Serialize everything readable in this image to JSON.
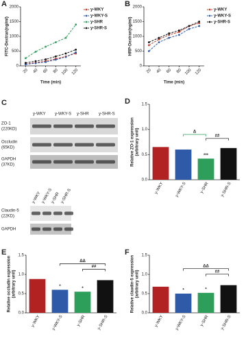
{
  "chart_data": [
    {
      "type": "line",
      "label": "A",
      "x_label": "Time (min)",
      "y_label": "FITC-Dextran(ng/ml)",
      "x": [
        20,
        40,
        60,
        80,
        100,
        120
      ],
      "xlim": [
        10,
        130
      ],
      "xticks": [
        20,
        40,
        60,
        80,
        100,
        120
      ],
      "ylim": [
        0,
        2000
      ],
      "yticks": [
        0,
        500,
        1000,
        1500,
        2000
      ],
      "series": [
        {
          "name": "y-WKY",
          "color": "#c0392b",
          "values": [
            60,
            110,
            160,
            240,
            320,
            420
          ]
        },
        {
          "name": "y-WKY-S",
          "color": "#2f5aa8",
          "values": [
            50,
            90,
            130,
            210,
            300,
            460
          ]
        },
        {
          "name": "y-SHR",
          "color": "#2e9e5b",
          "values": [
            260,
            480,
            650,
            800,
            950,
            1400
          ]
        },
        {
          "name": "y-SHR-S",
          "color": "#111111",
          "values": [
            100,
            160,
            220,
            320,
            420,
            550
          ]
        }
      ]
    },
    {
      "type": "line",
      "label": "B",
      "x_label": "Time (min)",
      "y_label": "HRP-Dextran(ng/ml)",
      "x": [
        20,
        40,
        60,
        80,
        100,
        120
      ],
      "xlim": [
        10,
        130
      ],
      "xticks": [
        20,
        40,
        60,
        80,
        100,
        120
      ],
      "ylim": [
        0,
        2000
      ],
      "yticks": [
        0,
        500,
        1000,
        1500,
        2000
      ],
      "series": [
        {
          "name": "y-WKY",
          "color": "#c0392b",
          "values": [
            700,
            900,
            1050,
            1150,
            1350,
            1450
          ]
        },
        {
          "name": "y-WKY-S",
          "color": "#2f5aa8",
          "values": [
            500,
            800,
            950,
            1050,
            1250,
            1350
          ]
        },
        {
          "name": "y-SHR-S",
          "color": "#111111",
          "values": [
            800,
            950,
            1100,
            1200,
            1350,
            1500
          ]
        }
      ]
    },
    {
      "type": "bar",
      "label": "D",
      "y_label": "Relative ZO-1 expression",
      "y_label2": "(arbitrary unit)",
      "categories": [
        "y-WKY",
        "y-WKY-S",
        "y-SHR",
        "y-SHR-S"
      ],
      "colors": [
        "#b22222",
        "#2f5aa8",
        "#2e9e5b",
        "#111111"
      ],
      "values": [
        0.65,
        0.6,
        0.42,
        0.63
      ],
      "ylim": [
        0,
        1.5
      ],
      "yticks": [
        {
          "value": 0,
          "label": "0.0"
        },
        0.5,
        {
          "value": 1,
          "label": "1.0"
        },
        1.5
      ],
      "annotations": [
        {
          "text": "Δ",
          "color": "#2e9e5b"
        },
        {
          "text": "##",
          "color": "#111111"
        },
        {
          "text": "***",
          "color": "#2e9e5b"
        }
      ]
    },
    {
      "type": "bar",
      "label": "E",
      "y_label": "Relative occludin expression",
      "y_label2": "(arbitrary unit)",
      "categories": [
        "y-WKY",
        "y-WKY-S",
        "y-SHR",
        "y-SHR-S"
      ],
      "colors": [
        "#b22222",
        "#2f5aa8",
        "#2e9e5b",
        "#111111"
      ],
      "values": [
        0.88,
        0.6,
        0.55,
        0.85
      ],
      "ylim": [
        0,
        1.5
      ],
      "yticks": [
        {
          "value": 0,
          "label": "0.0"
        },
        0.5,
        {
          "value": 1,
          "label": "1.0"
        },
        1.5
      ],
      "annotations": [
        {
          "text": "ΔΔ",
          "color": "#111111"
        },
        {
          "text": "##",
          "color": "#111111"
        },
        {
          "text": "*",
          "color": "#2f5aa8"
        },
        {
          "text": "*",
          "color": "#2e9e5b"
        }
      ]
    },
    {
      "type": "bar",
      "label": "F",
      "y_label": "Relative claudin-5 expression",
      "y_label2": "(arbitrary unit)",
      "categories": [
        "y-WKY",
        "y-WKY-S",
        "y-SHR",
        "y-SHR-S"
      ],
      "colors": [
        "#b22222",
        "#2f5aa8",
        "#2e9e5b",
        "#111111"
      ],
      "values": [
        0.68,
        0.5,
        0.52,
        0.72
      ],
      "ylim": [
        0,
        1.5
      ],
      "yticks": [
        {
          "value": 0,
          "label": "0.0"
        },
        0.5,
        {
          "value": 1,
          "label": "1.0"
        },
        1.5
      ],
      "annotations": [
        {
          "text": "ΔΔ",
          "color": "#111111"
        },
        {
          "text": "##",
          "color": "#111111"
        },
        {
          "text": "*",
          "color": "#2f5aa8"
        },
        {
          "text": "*",
          "color": "#2e9e5b"
        }
      ]
    }
  ],
  "blot": {
    "label": "C",
    "lanes_top": [
      "y-WKY",
      "y-WKY-S",
      "y-SHR",
      "y-SHR-S"
    ],
    "lanes_bottom": [
      "y-WKY",
      "y-WKY-S",
      "y-SHR",
      "y-SHR-S"
    ],
    "rows": [
      [
        "ZO-1",
        "(220KD)"
      ],
      [
        "Occludin",
        "(65KD)"
      ],
      [
        "GAPDH",
        "(37KD)"
      ],
      [
        "Claudin-5",
        "(22KD)"
      ],
      [
        "GAPDH"
      ]
    ]
  }
}
